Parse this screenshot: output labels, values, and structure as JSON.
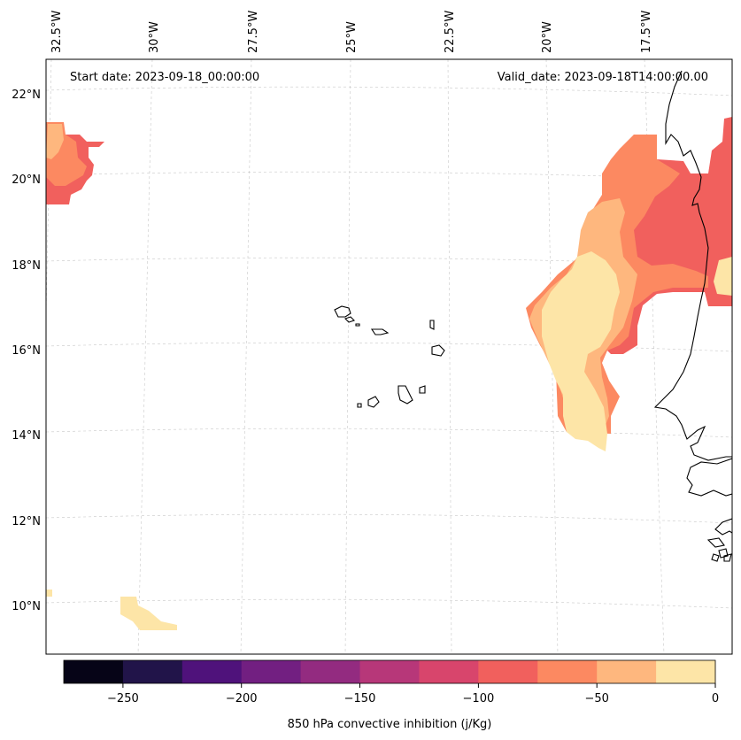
{
  "header": {
    "start_label": "Start date: 2023-09-18_00:00:00",
    "valid_label": "Valid_date: 2023-09-18T14:00:00.00"
  },
  "longitude_labels": [
    "32.5°W",
    "30°W",
    "27.5°W",
    "25°W",
    "22.5°W",
    "20°W",
    "17.5°W"
  ],
  "latitude_labels": [
    "22°N",
    "20°N",
    "18°N",
    "16°N",
    "14°N",
    "12°N",
    "10°N"
  ],
  "colorbar": {
    "title": "850 hPa convective inhibition (j/Kg)",
    "tick_labels": [
      "−250",
      "−200",
      "−150",
      "−100",
      "−50",
      "0"
    ],
    "bin_edges": [
      -275,
      -250,
      -225,
      -200,
      -175,
      -150,
      -125,
      -100,
      -75,
      -50,
      -25,
      0
    ],
    "colors": [
      "#060417",
      "#211449",
      "#4f127b",
      "#721f81",
      "#932b80",
      "#b73779",
      "#d8456c",
      "#f1605d",
      "#fc8961",
      "#feb77e",
      "#fde5a7"
    ]
  },
  "fill_colors": {
    "deep": "#f1605d",
    "mid": "#fc8961",
    "light": "#feb77e",
    "pale": "#fde5a7"
  }
}
